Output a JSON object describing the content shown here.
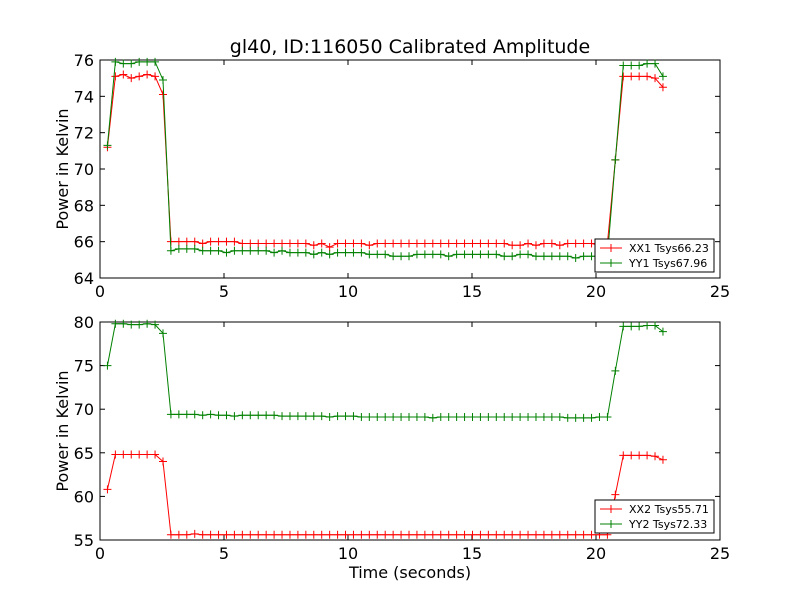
{
  "figure": {
    "title": "gl40, ID:116050 Calibrated Amplitude",
    "xlabel": "Time (seconds)"
  },
  "chart_data": [
    {
      "type": "line",
      "title": "gl40, ID:116050 Calibrated Amplitude",
      "xlabel": "",
      "ylabel": "Power in Kelvin",
      "xlim": [
        0,
        25
      ],
      "ylim": [
        64,
        76
      ],
      "xticks": [
        0,
        5,
        10,
        15,
        20,
        25
      ],
      "yticks": [
        64,
        66,
        68,
        70,
        72,
        74,
        76
      ],
      "grid": false,
      "legend_position": "bottom-right",
      "marker": "+",
      "t_start": 0.3,
      "t_step": 0.32,
      "series": [
        {
          "name": "XX1 Tsys66.23",
          "color": "#ff0000",
          "values": [
            71.2,
            75.1,
            75.2,
            75.0,
            75.1,
            75.2,
            75.1,
            74.1,
            66.0,
            66.0,
            66.0,
            66.0,
            65.9,
            66.0,
            66.0,
            66.0,
            66.0,
            65.9,
            65.9,
            65.9,
            65.9,
            65.9,
            65.9,
            65.9,
            65.9,
            65.9,
            65.8,
            65.9,
            65.7,
            65.9,
            65.9,
            65.9,
            65.9,
            65.8,
            65.9,
            65.9,
            65.9,
            65.9,
            65.9,
            65.9,
            65.9,
            65.9,
            65.9,
            65.9,
            65.9,
            65.9,
            65.9,
            65.9,
            65.9,
            65.9,
            65.9,
            65.8,
            65.8,
            65.9,
            65.8,
            65.9,
            65.9,
            65.8,
            65.9,
            65.9,
            65.9,
            65.9,
            65.8,
            65.9,
            70.5,
            75.1,
            75.1,
            75.1,
            75.1,
            75.0,
            74.5
          ]
        },
        {
          "name": "YY1 Tsys67.96",
          "color": "#008000",
          "values": [
            71.3,
            75.9,
            75.8,
            75.8,
            75.9,
            75.9,
            75.9,
            74.9,
            65.5,
            65.6,
            65.6,
            65.6,
            65.5,
            65.5,
            65.5,
            65.4,
            65.5,
            65.5,
            65.5,
            65.5,
            65.5,
            65.4,
            65.5,
            65.4,
            65.4,
            65.4,
            65.3,
            65.4,
            65.3,
            65.4,
            65.4,
            65.4,
            65.4,
            65.3,
            65.3,
            65.3,
            65.2,
            65.2,
            65.2,
            65.3,
            65.3,
            65.3,
            65.3,
            65.2,
            65.3,
            65.3,
            65.3,
            65.3,
            65.3,
            65.3,
            65.2,
            65.2,
            65.3,
            65.3,
            65.2,
            65.2,
            65.2,
            65.2,
            65.2,
            65.1,
            65.2,
            65.2,
            65.2,
            65.2,
            70.5,
            75.7,
            75.7,
            75.7,
            75.8,
            75.8,
            75.1
          ]
        }
      ]
    },
    {
      "type": "line",
      "title": "",
      "xlabel": "Time (seconds)",
      "ylabel": "Power in Kelvin",
      "xlim": [
        0,
        25
      ],
      "ylim": [
        55,
        80
      ],
      "xticks": [
        0,
        5,
        10,
        15,
        20,
        25
      ],
      "yticks": [
        55,
        60,
        65,
        70,
        75,
        80
      ],
      "grid": false,
      "legend_position": "bottom-right",
      "marker": "+",
      "t_start": 0.3,
      "t_step": 0.32,
      "series": [
        {
          "name": "XX2 Tsys55.71",
          "color": "#ff0000",
          "values": [
            60.8,
            64.8,
            64.8,
            64.8,
            64.8,
            64.8,
            64.8,
            64.0,
            55.6,
            55.6,
            55.6,
            55.7,
            55.6,
            55.6,
            55.6,
            55.6,
            55.6,
            55.6,
            55.6,
            55.6,
            55.6,
            55.6,
            55.6,
            55.6,
            55.6,
            55.6,
            55.6,
            55.6,
            55.6,
            55.6,
            55.6,
            55.6,
            55.6,
            55.6,
            55.6,
            55.6,
            55.6,
            55.6,
            55.6,
            55.6,
            55.6,
            55.6,
            55.6,
            55.6,
            55.6,
            55.6,
            55.6,
            55.6,
            55.6,
            55.6,
            55.6,
            55.6,
            55.6,
            55.6,
            55.6,
            55.6,
            55.6,
            55.6,
            55.6,
            55.6,
            55.6,
            55.6,
            55.6,
            55.6,
            60.2,
            64.7,
            64.7,
            64.7,
            64.7,
            64.6,
            64.2
          ]
        },
        {
          "name": "YY2 Tsys72.33",
          "color": "#008000",
          "values": [
            75.0,
            79.8,
            79.8,
            79.7,
            79.7,
            79.8,
            79.7,
            78.7,
            69.4,
            69.4,
            69.4,
            69.4,
            69.3,
            69.4,
            69.3,
            69.3,
            69.2,
            69.3,
            69.3,
            69.3,
            69.3,
            69.3,
            69.2,
            69.2,
            69.2,
            69.2,
            69.2,
            69.2,
            69.1,
            69.2,
            69.2,
            69.2,
            69.1,
            69.1,
            69.1,
            69.1,
            69.1,
            69.1,
            69.1,
            69.1,
            69.1,
            69.0,
            69.1,
            69.1,
            69.1,
            69.1,
            69.1,
            69.1,
            69.1,
            69.1,
            69.1,
            69.1,
            69.1,
            69.1,
            69.1,
            69.1,
            69.1,
            69.1,
            69.0,
            69.0,
            69.0,
            69.0,
            69.1,
            69.1,
            74.4,
            79.5,
            79.5,
            79.5,
            79.6,
            79.6,
            78.9
          ]
        }
      ]
    }
  ]
}
